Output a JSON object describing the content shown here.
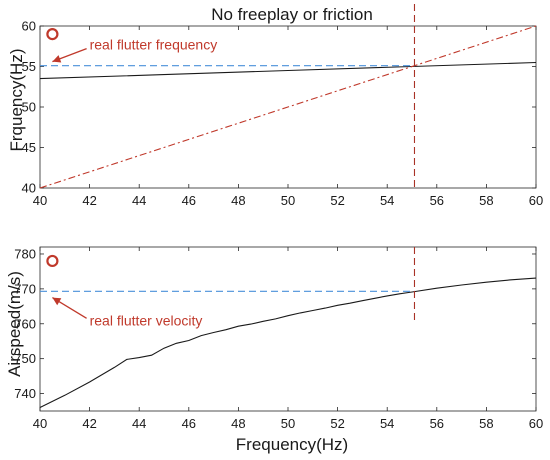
{
  "chart_data": [
    {
      "type": "line",
      "title": "No freeplay or friction",
      "xlabel": "",
      "ylabel": "Frquency(Hz)",
      "xlim": [
        40,
        60
      ],
      "ylim": [
        40,
        60
      ],
      "x_ticks": [
        40,
        42,
        44,
        46,
        48,
        50,
        52,
        54,
        56,
        58,
        60
      ],
      "y_ticks": [
        40,
        45,
        50,
        55,
        60
      ],
      "grid": false,
      "series": [
        {
          "style": "solid",
          "color": "#1a1a1a",
          "x": [
            40,
            45,
            50,
            55,
            60
          ],
          "y": [
            53.5,
            54.0,
            54.5,
            55.0,
            55.5
          ]
        },
        {
          "style": "dash-dot",
          "color": "#c0392b",
          "x": [
            40,
            60
          ],
          "y": [
            40,
            60
          ]
        },
        {
          "style": "dashed",
          "color": "#4a90d9",
          "x": [
            40,
            55.1
          ],
          "y": [
            55.1,
            55.1
          ]
        }
      ],
      "vline": {
        "x": 55.1,
        "style": "dashed",
        "color": "#a93226"
      },
      "marker": {
        "x": 40.5,
        "y": 59,
        "color": "#c0392b",
        "shape": "circle"
      },
      "annotation": {
        "text": "real flutter frequency",
        "x": 42,
        "y": 57.7,
        "arrow_to": [
          40.5,
          55.6
        ]
      }
    },
    {
      "type": "line",
      "title": "",
      "xlabel": "Frequency(Hz)",
      "ylabel": "Airspeed(m/s)",
      "xlim": [
        40,
        60
      ],
      "ylim": [
        735,
        782
      ],
      "x_ticks": [
        40,
        42,
        44,
        46,
        48,
        50,
        52,
        54,
        56,
        58,
        60
      ],
      "y_ticks": [
        740,
        750,
        760,
        770,
        780
      ],
      "grid": false,
      "series": [
        {
          "style": "solid",
          "color": "#1a1a1a",
          "x": [
            40,
            41,
            42,
            43,
            43.5,
            44,
            44.5,
            45,
            45.5,
            46,
            46.5,
            47,
            47.5,
            48,
            48.5,
            49,
            49.5,
            50,
            50.5,
            51,
            51.5,
            52,
            52.5,
            53,
            53.5,
            54,
            54.5,
            55,
            56,
            57,
            58,
            59,
            60
          ],
          "y": [
            736,
            739.5,
            743.3,
            747.5,
            749.8,
            750.3,
            751,
            753,
            754.4,
            755.2,
            756.6,
            757.5,
            758.3,
            759.3,
            759.9,
            760.7,
            761.4,
            762.3,
            763.1,
            763.8,
            764.5,
            765.3,
            765.9,
            766.6,
            767.3,
            768,
            768.6,
            769.1,
            770.2,
            771.1,
            771.9,
            772.6,
            773.1
          ]
        },
        {
          "style": "dashed",
          "color": "#4a90d9",
          "x": [
            40,
            55.1
          ],
          "y": [
            769.3,
            769.3
          ]
        }
      ],
      "vline": {
        "x": 55.1,
        "style": "dashed",
        "color": "#a93226"
      },
      "marker": {
        "x": 40.5,
        "y": 778,
        "color": "#c0392b",
        "shape": "circle"
      },
      "annotation": {
        "text": "real flutter velocity",
        "x": 42,
        "y": 761,
        "arrow_to": [
          40.5,
          767.5
        ]
      }
    }
  ]
}
